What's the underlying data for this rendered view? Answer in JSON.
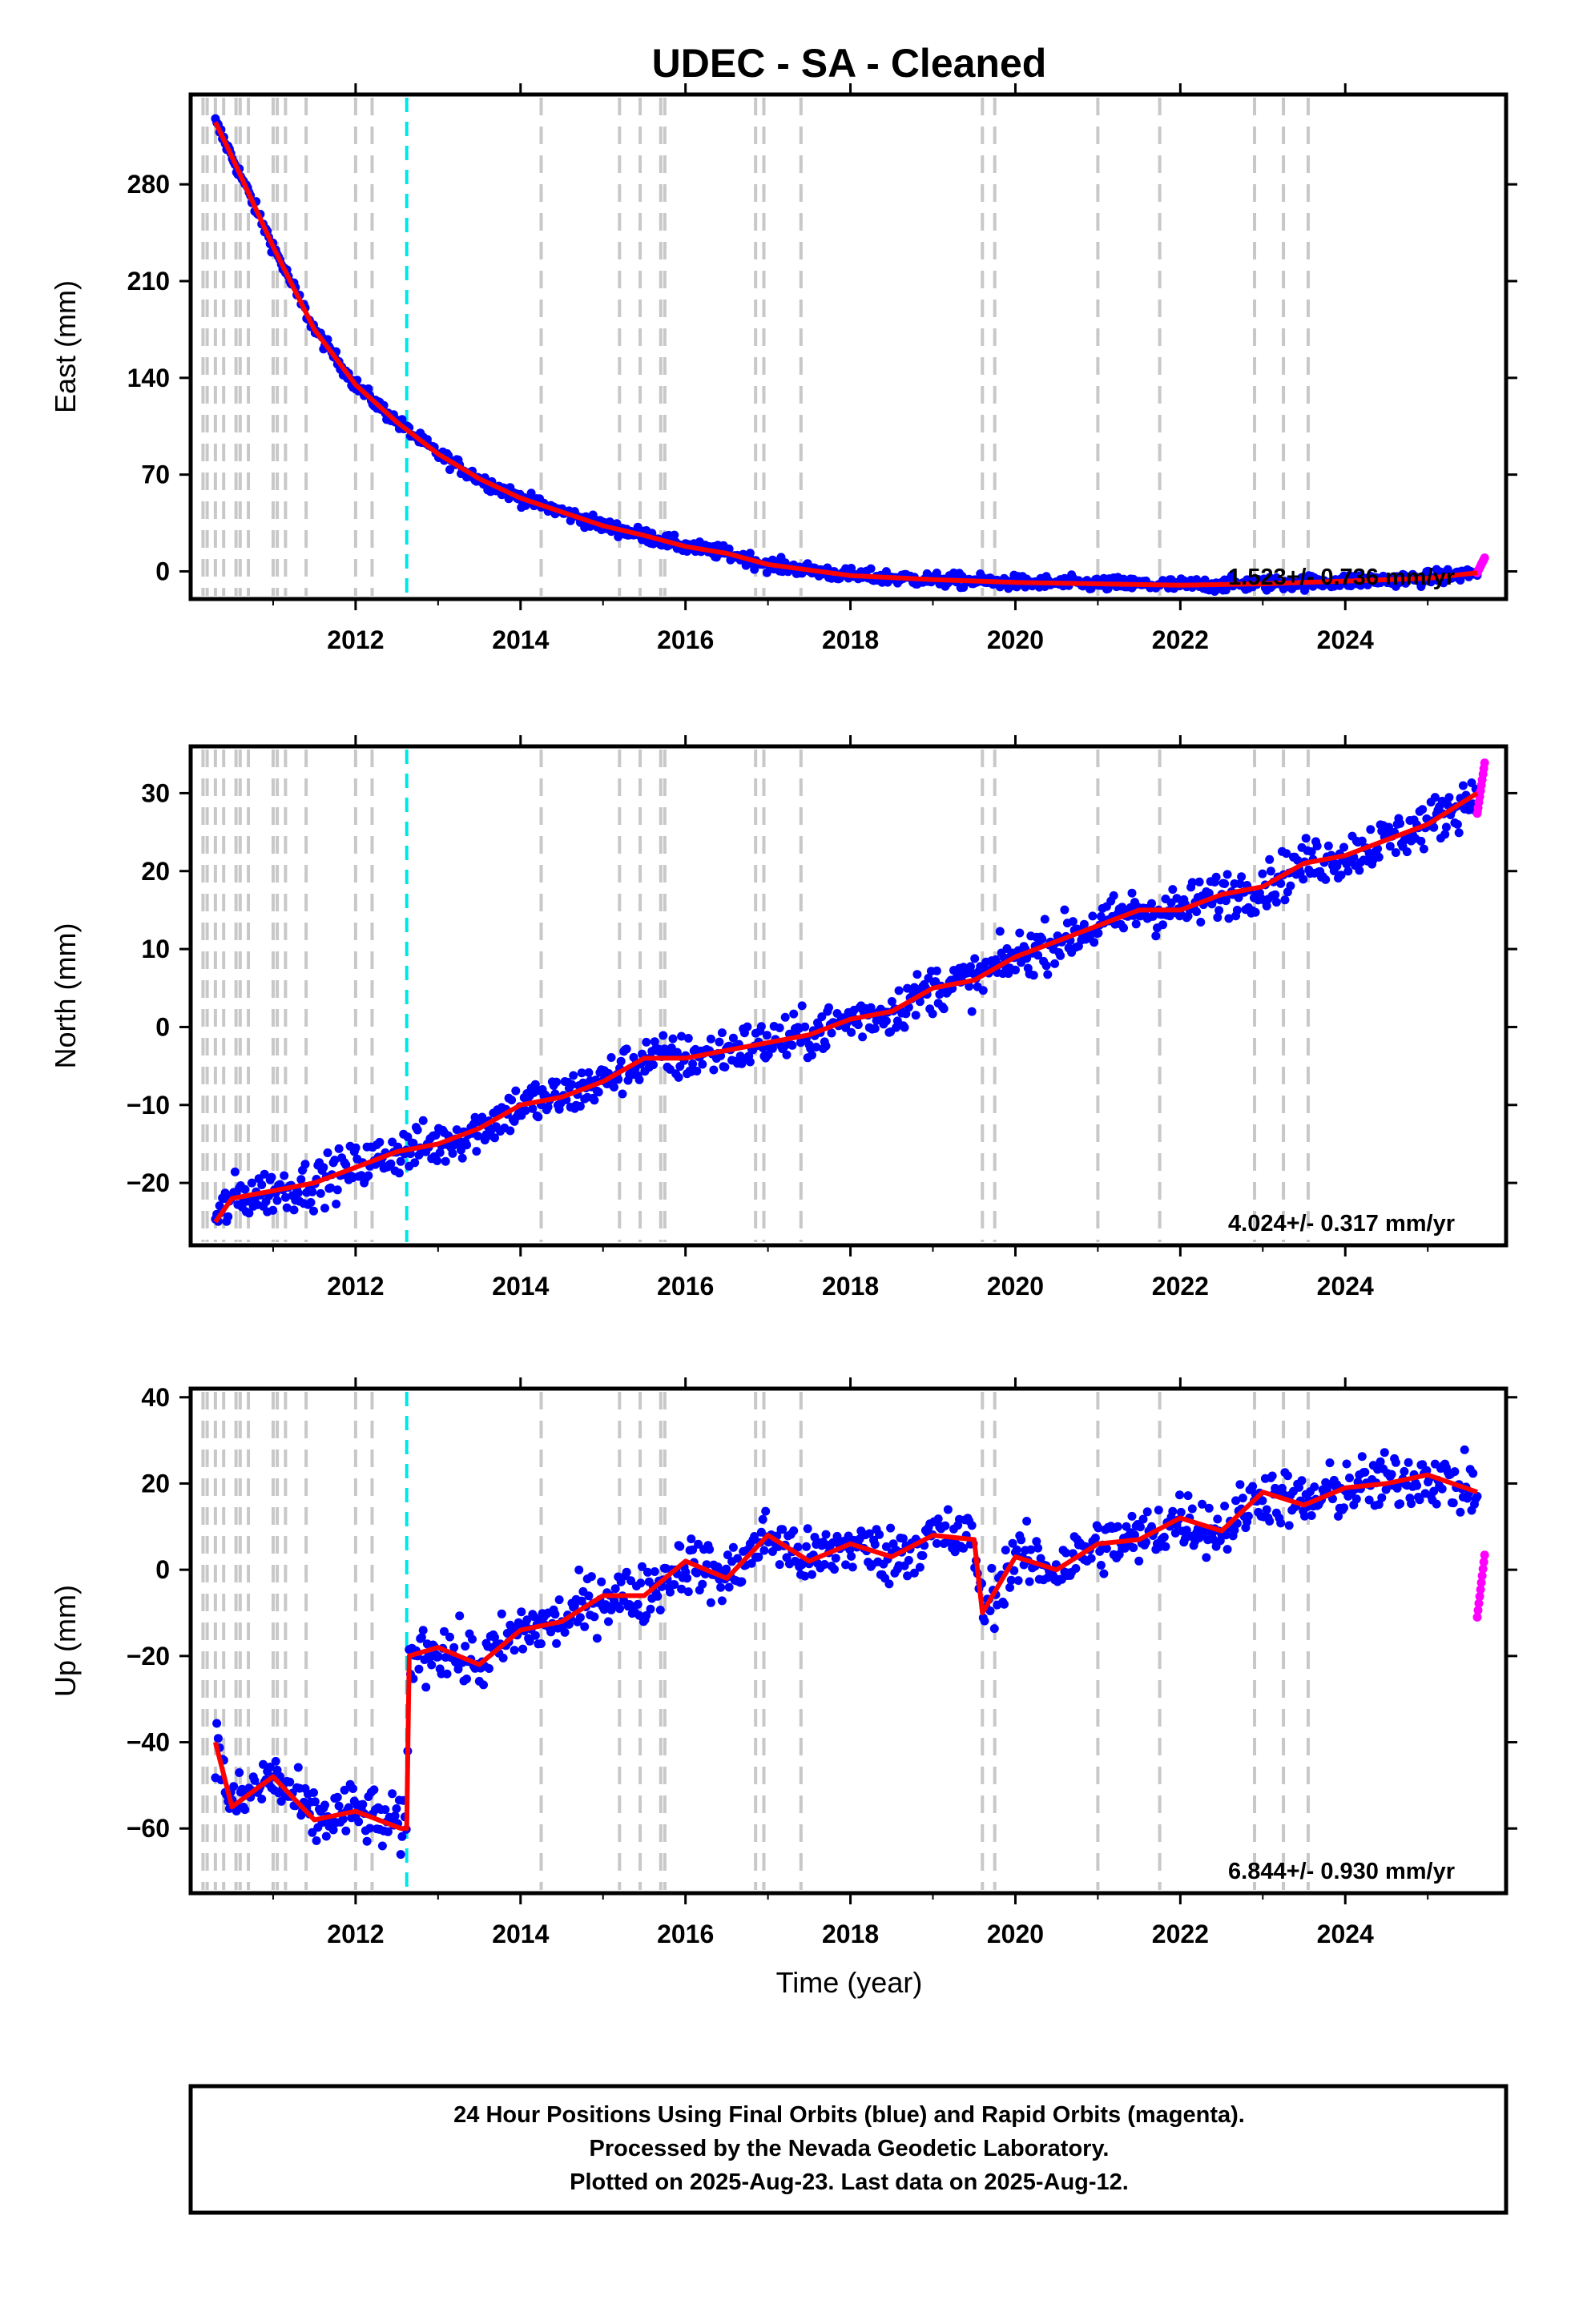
{
  "title": "UDEC  - SA - Cleaned",
  "xlabel": "Time (year)",
  "colors": {
    "final_orbits": "#0000ff",
    "rapid_orbits": "#ff00ff",
    "model": "#ff0000",
    "event_lines": "#c8c8c8",
    "highlight_event": "#00e5e5"
  },
  "event_lines": [
    2010.15,
    2010.2,
    2010.3,
    2010.4,
    2010.55,
    2010.6,
    2010.7,
    2011.0,
    2011.05,
    2011.15,
    2011.4,
    2012.0,
    2012.2,
    2014.25,
    2015.2,
    2015.45,
    2015.7,
    2015.75,
    2016.85,
    2016.95,
    2017.4,
    2019.6,
    2019.75,
    2021.0,
    2021.75,
    2022.9,
    2023.25,
    2023.55
  ],
  "highlight_event": 2012.62,
  "chart_data": [
    {
      "type": "scatter",
      "name": "east",
      "ylabel": "East (mm)",
      "xlim": [
        2010.0,
        2025.95
      ],
      "ylim": [
        -20,
        345
      ],
      "xticks": [
        2012,
        2014,
        2016,
        2018,
        2020,
        2022,
        2024
      ],
      "xtick_labels": [
        "2012",
        "2014",
        "2016",
        "2018",
        "2020",
        "2022",
        "2024"
      ],
      "yticks": [
        0,
        70,
        140,
        210,
        280
      ],
      "ytick_labels": [
        "0",
        "70",
        "140",
        "210",
        "280"
      ],
      "rate_label": "1.523+/- 0.736 mm/yr",
      "trend_x": [
        2010.3,
        2010.5,
        2011.0,
        2011.5,
        2012.0,
        2012.5,
        2013.0,
        2013.5,
        2014.0,
        2014.5,
        2015.0,
        2015.5,
        2016.0,
        2016.5,
        2017.0,
        2017.5,
        2018.0,
        2019.0,
        2020.0,
        2021.0,
        2022.0,
        2023.0,
        2024.0,
        2025.0,
        2025.6
      ],
      "trend_y": [
        325,
        300,
        235,
        175,
        135,
        108,
        85,
        67,
        53,
        43,
        33,
        26,
        18,
        13,
        5,
        1,
        -3,
        -6,
        -8,
        -9,
        -10,
        -9,
        -7,
        -5,
        -1
      ],
      "noise": 3,
      "rapid_end_y": 5
    },
    {
      "type": "scatter",
      "name": "north",
      "ylabel": "North (mm)",
      "xlim": [
        2010.0,
        2025.95
      ],
      "ylim": [
        -28,
        36
      ],
      "xticks": [
        2012,
        2014,
        2016,
        2018,
        2020,
        2022,
        2024
      ],
      "xtick_labels": [
        "2012",
        "2014",
        "2016",
        "2018",
        "2020",
        "2022",
        "2024"
      ],
      "yticks": [
        -20,
        -10,
        0,
        10,
        20,
        30
      ],
      "ytick_labels": [
        "−20",
        "−10",
        "0",
        "10",
        "20",
        "30"
      ],
      "rate_label": "4.024+/- 0.317 mm/yr",
      "trend_x": [
        2010.3,
        2010.5,
        2011.0,
        2011.5,
        2012.0,
        2012.5,
        2013.0,
        2013.5,
        2014.0,
        2014.5,
        2015.0,
        2015.5,
        2016.0,
        2016.5,
        2017.0,
        2017.5,
        2018.0,
        2018.5,
        2019.0,
        2019.5,
        2020.0,
        2020.5,
        2021.0,
        2021.5,
        2022.0,
        2022.5,
        2023.0,
        2023.5,
        2024.0,
        2024.5,
        2025.0,
        2025.6
      ],
      "trend_y": [
        -25,
        -22,
        -21,
        -20,
        -18,
        -16,
        -15,
        -13,
        -10,
        -9,
        -7,
        -4,
        -4,
        -3,
        -2,
        -1,
        1,
        2,
        5,
        6,
        9,
        11,
        13,
        15,
        15,
        17,
        18,
        21,
        22,
        24,
        26,
        30
      ],
      "noise": 1.8,
      "rapid_end_y": 31
    },
    {
      "type": "scatter",
      "name": "up",
      "ylabel": "Up (mm)",
      "xlim": [
        2010.0,
        2025.95
      ],
      "ylim": [
        -75,
        42
      ],
      "xticks": [
        2012,
        2014,
        2016,
        2018,
        2020,
        2022,
        2024
      ],
      "xtick_labels": [
        "2012",
        "2014",
        "2016",
        "2018",
        "2020",
        "2022",
        "2024"
      ],
      "yticks": [
        -60,
        -40,
        -20,
        0,
        20,
        40
      ],
      "ytick_labels": [
        "−60",
        "−40",
        "−20",
        "0",
        "20",
        "40"
      ],
      "rate_label": "6.844+/- 0.930 mm/yr",
      "trend_x": [
        2010.3,
        2010.5,
        2011.0,
        2011.5,
        2012.0,
        2012.55,
        2012.62,
        2012.65,
        2013.0,
        2013.5,
        2014.0,
        2014.5,
        2015.0,
        2015.5,
        2016.0,
        2016.5,
        2017.0,
        2017.5,
        2018.0,
        2018.5,
        2019.0,
        2019.5,
        2019.6,
        2020.0,
        2020.5,
        2021.0,
        2021.5,
        2022.0,
        2022.5,
        2023.0,
        2023.5,
        2024.0,
        2024.5,
        2025.0,
        2025.6
      ],
      "trend_y": [
        -40,
        -55,
        -48,
        -58,
        -56,
        -60,
        -60,
        -20,
        -18,
        -22,
        -14,
        -12,
        -6,
        -6,
        2,
        -2,
        8,
        2,
        6,
        3,
        8,
        7,
        -10,
        3,
        0,
        6,
        7,
        12,
        9,
        18,
        15,
        19,
        20,
        22,
        18
      ],
      "noise": 4,
      "rapid_end_y": -3
    }
  ],
  "footer": {
    "line1": "24 Hour Positions Using Final Orbits (blue) and Rapid Orbits (magenta).",
    "line2": "Processed by the Nevada Geodetic Laboratory.",
    "line3": "Plotted on 2025-Aug-23. Last data on 2025-Aug-12."
  }
}
